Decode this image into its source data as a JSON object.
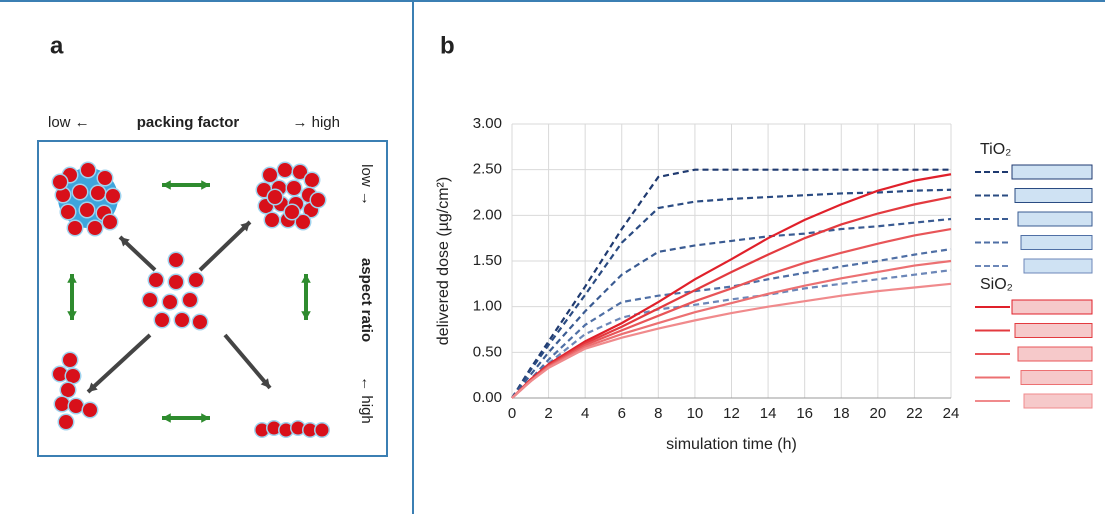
{
  "panel_a": {
    "label": "a",
    "top_labels": [
      "low ←",
      "packing factor",
      "→ high"
    ],
    "side_labels": [
      "low →",
      "aspect ratio",
      "← high"
    ]
  },
  "chart_data": {
    "type": "line",
    "label": "b",
    "x_label": "simulation time (h)",
    "y_label": "delivered dose (µg/cm²)",
    "xlim": [
      0,
      24
    ],
    "ylim": [
      0,
      3
    ],
    "grid": true,
    "xticks": [
      0,
      2,
      4,
      6,
      8,
      10,
      12,
      14,
      16,
      18,
      20,
      22,
      24
    ],
    "yticks": [
      {
        "value": 0,
        "label": "0.00"
      },
      {
        "value": 0.5,
        "label": "0.50"
      },
      {
        "value": 1,
        "label": "1.00"
      },
      {
        "value": 1.5,
        "label": "1.50"
      },
      {
        "value": 2,
        "label": "2.00"
      },
      {
        "value": 2.5,
        "label": "2.50"
      },
      {
        "value": 3,
        "label": "3.00"
      }
    ],
    "x": [
      0,
      1,
      2,
      4,
      6,
      8,
      10,
      12,
      14,
      16,
      18,
      20,
      22,
      24
    ],
    "groups": [
      "TiO₂",
      "SiO₂"
    ],
    "series": [
      {
        "group": 0,
        "dashed": true,
        "color": "#1f3a70",
        "values": [
          0,
          0.32,
          0.62,
          1.22,
          1.85,
          2.42,
          2.5,
          2.5,
          2.5,
          2.5,
          2.5,
          2.5,
          2.5,
          2.5
        ]
      },
      {
        "group": 0,
        "dashed": true,
        "color": "#2a4b82",
        "values": [
          0,
          0.3,
          0.58,
          1.13,
          1.7,
          2.08,
          2.15,
          2.18,
          2.2,
          2.22,
          2.24,
          2.25,
          2.27,
          2.28
        ]
      },
      {
        "group": 0,
        "dashed": true,
        "color": "#3a5b92",
        "values": [
          0,
          0.25,
          0.5,
          0.95,
          1.35,
          1.6,
          1.67,
          1.72,
          1.77,
          1.8,
          1.85,
          1.88,
          1.92,
          1.96
        ]
      },
      {
        "group": 0,
        "dashed": true,
        "color": "#4f6fa5",
        "values": [
          0,
          0.2,
          0.42,
          0.8,
          1.05,
          1.12,
          1.17,
          1.22,
          1.3,
          1.37,
          1.44,
          1.5,
          1.57,
          1.63
        ]
      },
      {
        "group": 0,
        "dashed": true,
        "color": "#6c87b8",
        "values": [
          0,
          0.18,
          0.38,
          0.7,
          0.88,
          0.97,
          1.02,
          1.08,
          1.13,
          1.2,
          1.25,
          1.3,
          1.35,
          1.4
        ]
      },
      {
        "group": 1,
        "dashed": false,
        "color": "#e0202a",
        "values": [
          0,
          0.2,
          0.37,
          0.62,
          0.82,
          1.05,
          1.3,
          1.52,
          1.75,
          1.95,
          2.12,
          2.27,
          2.38,
          2.45
        ]
      },
      {
        "group": 1,
        "dashed": false,
        "color": "#e33a3f",
        "values": [
          0,
          0.19,
          0.36,
          0.6,
          0.78,
          0.98,
          1.18,
          1.38,
          1.57,
          1.75,
          1.9,
          2.02,
          2.12,
          2.2
        ]
      },
      {
        "group": 1,
        "dashed": false,
        "color": "#e85558",
        "values": [
          0,
          0.19,
          0.35,
          0.58,
          0.74,
          0.9,
          1.06,
          1.2,
          1.35,
          1.48,
          1.59,
          1.69,
          1.78,
          1.85
        ]
      },
      {
        "group": 1,
        "dashed": false,
        "color": "#ec7072",
        "values": [
          0,
          0.18,
          0.34,
          0.56,
          0.7,
          0.82,
          0.94,
          1.04,
          1.14,
          1.23,
          1.31,
          1.38,
          1.45,
          1.5
        ]
      },
      {
        "group": 1,
        "dashed": false,
        "color": "#f08a8c",
        "values": [
          0,
          0.18,
          0.33,
          0.54,
          0.66,
          0.76,
          0.85,
          0.93,
          1.0,
          1.06,
          1.12,
          1.17,
          1.21,
          1.25
        ]
      }
    ]
  }
}
